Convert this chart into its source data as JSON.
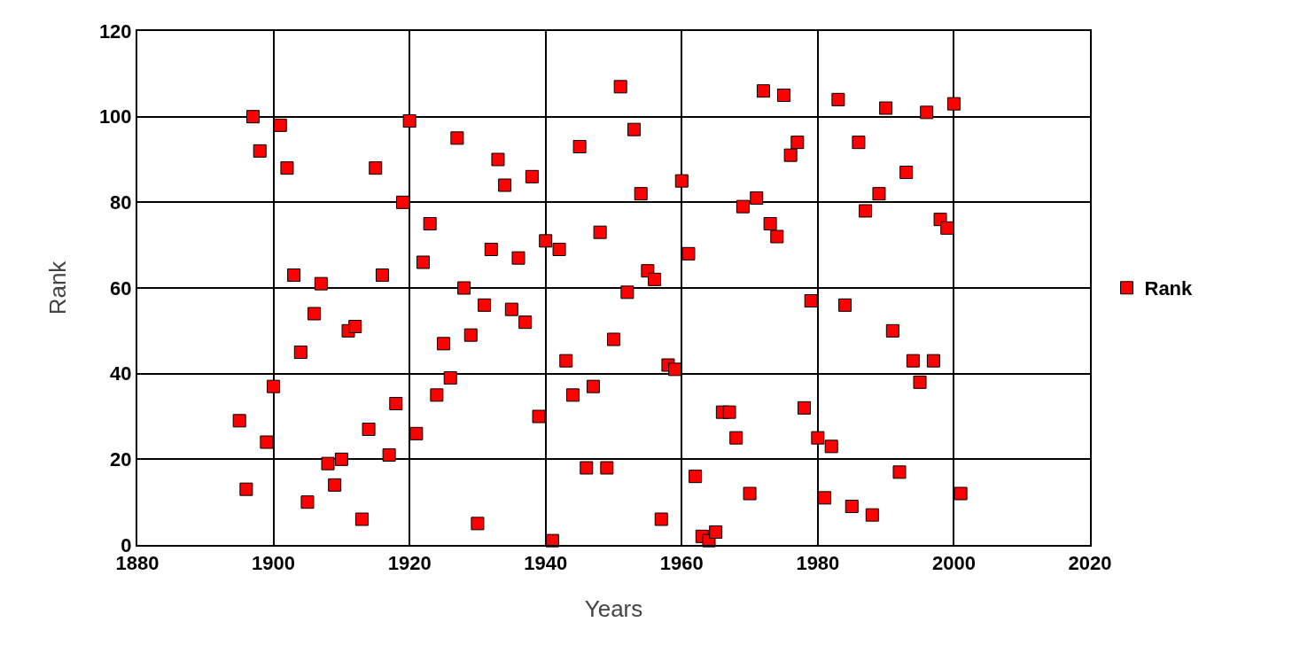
{
  "chart_data": {
    "type": "scatter",
    "xlabel": "Years",
    "ylabel": "Rank",
    "x": [
      1895,
      1896,
      1897,
      1898,
      1899,
      1900,
      1901,
      1902,
      1903,
      1904,
      1905,
      1906,
      1907,
      1908,
      1909,
      1910,
      1911,
      1912,
      1913,
      1914,
      1915,
      1916,
      1917,
      1918,
      1919,
      1920,
      1921,
      1922,
      1923,
      1924,
      1925,
      1926,
      1927,
      1928,
      1929,
      1930,
      1931,
      1932,
      1933,
      1934,
      1935,
      1936,
      1937,
      1938,
      1939,
      1940,
      1941,
      1942,
      1943,
      1944,
      1945,
      1946,
      1947,
      1948,
      1949,
      1950,
      1951,
      1952,
      1953,
      1954,
      1955,
      1956,
      1957,
      1958,
      1959,
      1960,
      1961,
      1962,
      1963,
      1964,
      1965,
      1966,
      1967,
      1968,
      1969,
      1970,
      1971,
      1972,
      1973,
      1974,
      1975,
      1976,
      1977,
      1978,
      1979,
      1980,
      1981,
      1982,
      1983,
      1984,
      1985,
      1986,
      1987,
      1988,
      1989,
      1990,
      1991,
      1992,
      1993,
      1994,
      1995,
      1996,
      1997,
      1998,
      1999,
      2000,
      2001
    ],
    "series": [
      {
        "name": "Rank",
        "color": "#ff0000",
        "values": [
          29,
          13,
          100,
          92,
          24,
          37,
          98,
          88,
          63,
          45,
          10,
          54,
          61,
          19,
          14,
          20,
          50,
          51,
          6,
          27,
          88,
          63,
          21,
          33,
          80,
          99,
          26,
          66,
          75,
          35,
          47,
          39,
          95,
          60,
          49,
          5,
          56,
          69,
          90,
          84,
          55,
          67,
          52,
          86,
          30,
          71,
          1,
          69,
          43,
          35,
          93,
          18,
          37,
          73,
          18,
          48,
          107,
          59,
          97,
          82,
          64,
          62,
          6,
          42,
          41,
          85,
          68,
          16,
          2,
          1,
          3,
          31,
          31,
          25,
          79,
          12,
          81,
          106,
          75,
          72,
          105,
          91,
          94,
          32,
          57,
          25,
          11,
          23,
          104,
          56,
          9,
          94,
          78,
          7,
          82,
          102,
          50,
          17,
          87,
          43,
          38,
          101,
          43,
          76,
          74,
          103,
          12
        ]
      }
    ],
    "xlim": [
      1880,
      2020
    ],
    "xticks": [
      1880,
      1900,
      1920,
      1940,
      1960,
      1980,
      2000,
      2020
    ],
    "ylim": [
      0,
      120
    ],
    "yticks": [
      0,
      20,
      40,
      60,
      80,
      100,
      120
    ],
    "grid": true,
    "legend": "right",
    "marker": "square"
  }
}
